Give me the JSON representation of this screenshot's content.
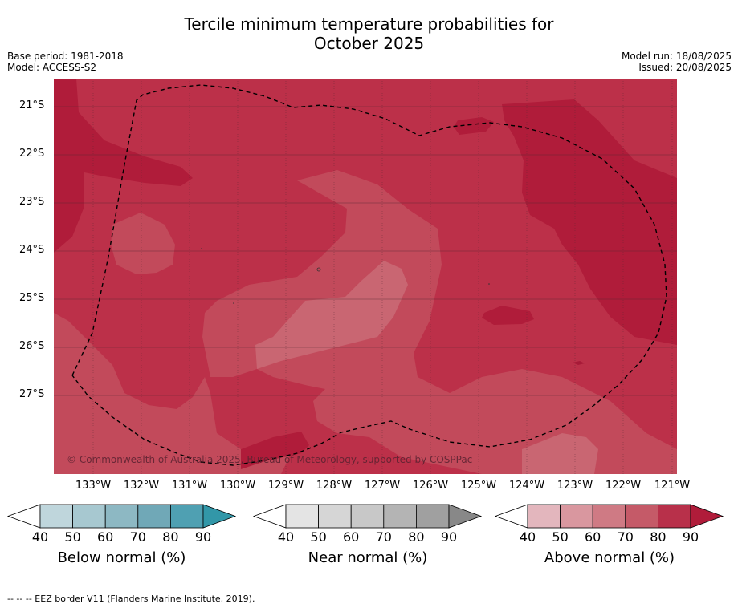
{
  "title_line1": "Tercile minimum temperature probabilities for",
  "title_line2": "October 2025",
  "meta_left": {
    "base_period": "Base period: 1981-2018",
    "model": "Model: ACCESS-S2"
  },
  "meta_right": {
    "model_run": "Model run: 18/08/2025",
    "issued": "Issued: 20/08/2025"
  },
  "map": {
    "lat_labels": [
      "21°S",
      "22°S",
      "23°S",
      "24°S",
      "25°S",
      "26°S",
      "27°S"
    ],
    "lon_labels": [
      "133°W",
      "132°W",
      "131°W",
      "130°W",
      "129°W",
      "128°W",
      "127°W",
      "126°W",
      "125°W",
      "124°W",
      "123°W",
      "122°W",
      "121°W"
    ],
    "copyright": "© Commonwealth of Australia 2025, Bureau of Meteorology, supported by COSPPac",
    "colors": {
      "above_90": "#b01c3a",
      "above_80": "#bc3049",
      "above_70": "#c24a5b",
      "above_60": "#c96672",
      "above_50": "#d3929a"
    }
  },
  "colorbars": [
    {
      "title": "Below normal (%)",
      "ticks": [
        "40",
        "50",
        "60",
        "70",
        "80",
        "90"
      ],
      "colors": [
        "#bfd6dc",
        "#a7c8d0",
        "#8db8c3",
        "#70a8b7",
        "#4fa0b2",
        "#3297a8"
      ]
    },
    {
      "title": "Near normal (%)",
      "ticks": [
        "40",
        "50",
        "60",
        "70",
        "80",
        "90"
      ],
      "colors": [
        "#e4e4e4",
        "#d6d6d6",
        "#c8c8c8",
        "#b4b4b4",
        "#a0a0a0",
        "#888888"
      ]
    },
    {
      "title": "Above normal (%)",
      "ticks": [
        "40",
        "50",
        "60",
        "70",
        "80",
        "90"
      ],
      "colors": [
        "#e3b6bd",
        "#d9979f",
        "#cf7a84",
        "#c55a68",
        "#b8304a",
        "#b01c3a"
      ]
    }
  ],
  "footer": "--  --  -- EEZ border V11 (Flanders Marine Institute, 2019)."
}
